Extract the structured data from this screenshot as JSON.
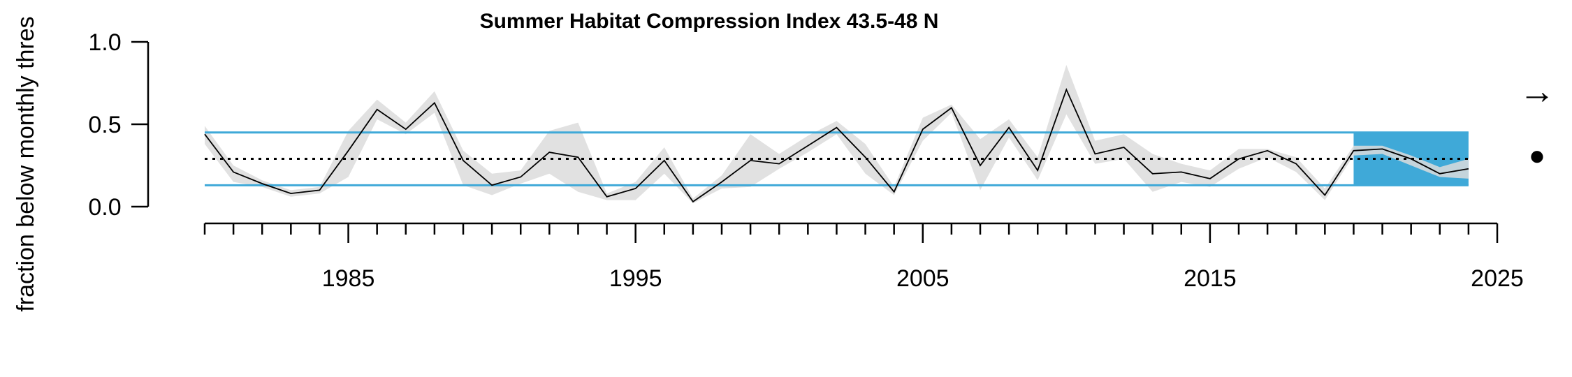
{
  "chart_data": {
    "type": "line",
    "title": "Summer Habitat Compression Index 43.5-48 N",
    "xlabel": "",
    "ylabel": "fraction below monthly thres",
    "xlim": [
      1980,
      2025
    ],
    "ylim": [
      0,
      1
    ],
    "x_ticks": [
      1985,
      1995,
      2005,
      2015,
      2025
    ],
    "x_ticks_labels": [
      "1985",
      "1995",
      "2005",
      "2015",
      "2025"
    ],
    "y_ticks": [
      0.0,
      0.5,
      1.0
    ],
    "y_ticks_labels": [
      "0.0",
      "0.5",
      "1.0"
    ],
    "mean": 0.29,
    "sd_upper": 0.45,
    "sd_lower": 0.13,
    "recent_window": [
      2020,
      2024
    ],
    "trend_symbol": "→",
    "mean_symbol": "●",
    "colors": {
      "sd_lines": "#3fa9d8",
      "recent_window": "#3fa9d8",
      "ribbon": "#dcdcdc",
      "line": "#000000",
      "mean_line": "#000000"
    },
    "series": [
      {
        "x": [
          1980,
          1981,
          1982,
          1983,
          1984,
          1985,
          1986,
          1987,
          1988,
          1989,
          1990,
          1991,
          1992,
          1993,
          1994,
          1995,
          1996,
          1997,
          1998,
          1999,
          2000,
          2001,
          2002,
          2003,
          2004,
          2005,
          2006,
          2007,
          2008,
          2009,
          2010,
          2011,
          2012,
          2013,
          2014,
          2015,
          2016,
          2017,
          2018,
          2019,
          2020,
          2021,
          2022,
          2023,
          2024
        ],
        "values": [
          0.44,
          0.21,
          0.14,
          0.08,
          0.1,
          0.34,
          0.59,
          0.47,
          0.63,
          0.28,
          0.13,
          0.18,
          0.33,
          0.3,
          0.06,
          0.11,
          0.28,
          0.03,
          0.15,
          0.28,
          0.26,
          0.37,
          0.48,
          0.3,
          0.09,
          0.47,
          0.6,
          0.25,
          0.48,
          0.22,
          0.71,
          0.32,
          0.36,
          0.2,
          0.21,
          0.17,
          0.29,
          0.34,
          0.26,
          0.07,
          0.34,
          0.35,
          0.29,
          0.2,
          0.23
        ],
        "upper": [
          0.49,
          0.25,
          0.16,
          0.1,
          0.12,
          0.46,
          0.65,
          0.51,
          0.7,
          0.34,
          0.2,
          0.22,
          0.46,
          0.51,
          0.08,
          0.15,
          0.36,
          0.05,
          0.19,
          0.44,
          0.32,
          0.43,
          0.52,
          0.38,
          0.12,
          0.54,
          0.62,
          0.41,
          0.53,
          0.3,
          0.86,
          0.4,
          0.44,
          0.32,
          0.26,
          0.22,
          0.35,
          0.35,
          0.3,
          0.11,
          0.37,
          0.37,
          0.31,
          0.24,
          0.29
        ],
        "lower": [
          0.38,
          0.15,
          0.12,
          0.06,
          0.08,
          0.18,
          0.53,
          0.44,
          0.57,
          0.13,
          0.07,
          0.14,
          0.2,
          0.09,
          0.04,
          0.04,
          0.2,
          0.02,
          0.11,
          0.12,
          0.23,
          0.33,
          0.44,
          0.2,
          0.07,
          0.4,
          0.57,
          0.1,
          0.42,
          0.16,
          0.56,
          0.26,
          0.29,
          0.09,
          0.15,
          0.12,
          0.23,
          0.3,
          0.21,
          0.04,
          0.31,
          0.32,
          0.25,
          0.18,
          0.17
        ]
      }
    ]
  }
}
